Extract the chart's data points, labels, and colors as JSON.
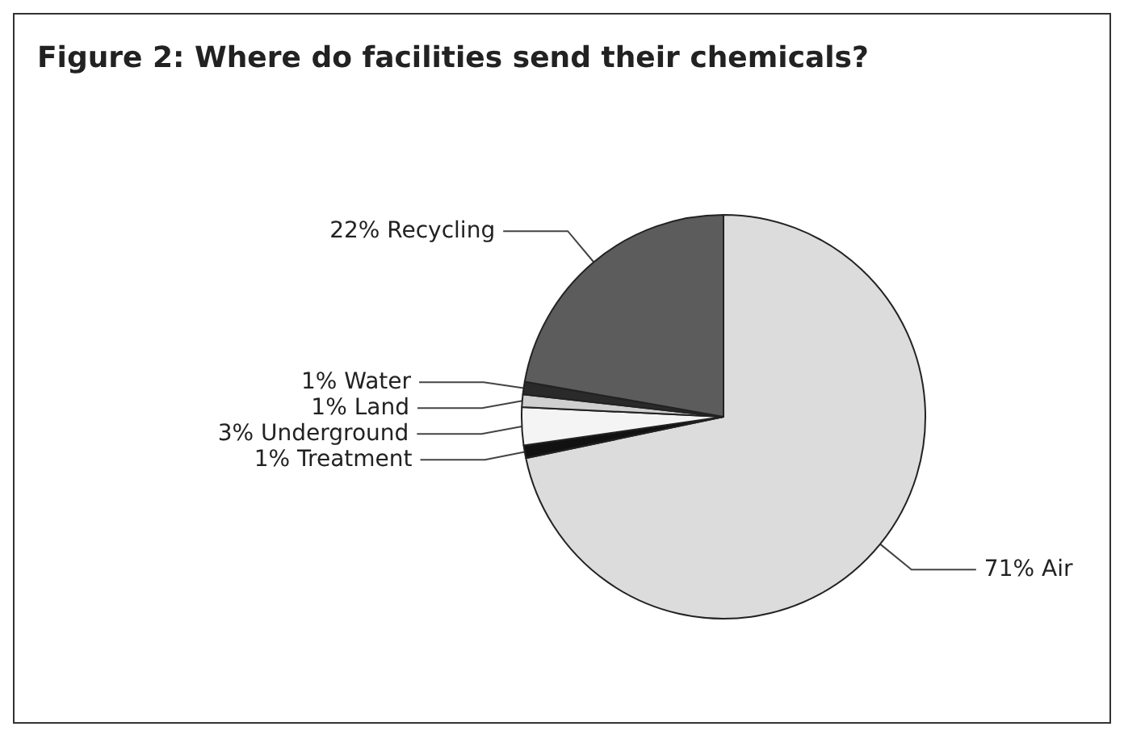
{
  "chart_data": {
    "type": "pie",
    "title": "Figure 2: Where do facilities send their chemicals?",
    "categories": [
      "Air",
      "Treatment",
      "Underground",
      "Land",
      "Water",
      "Recycling"
    ],
    "values": [
      71,
      1,
      3,
      1,
      1,
      22
    ],
    "value_labels": [
      "71%",
      "1%",
      "3%",
      "1%",
      "1%",
      "22%"
    ],
    "colors": [
      "#dcdcdc",
      "#111111",
      "#f4f4f4",
      "#cfcfcf",
      "#2a2a2a",
      "#5c5c5c"
    ]
  }
}
